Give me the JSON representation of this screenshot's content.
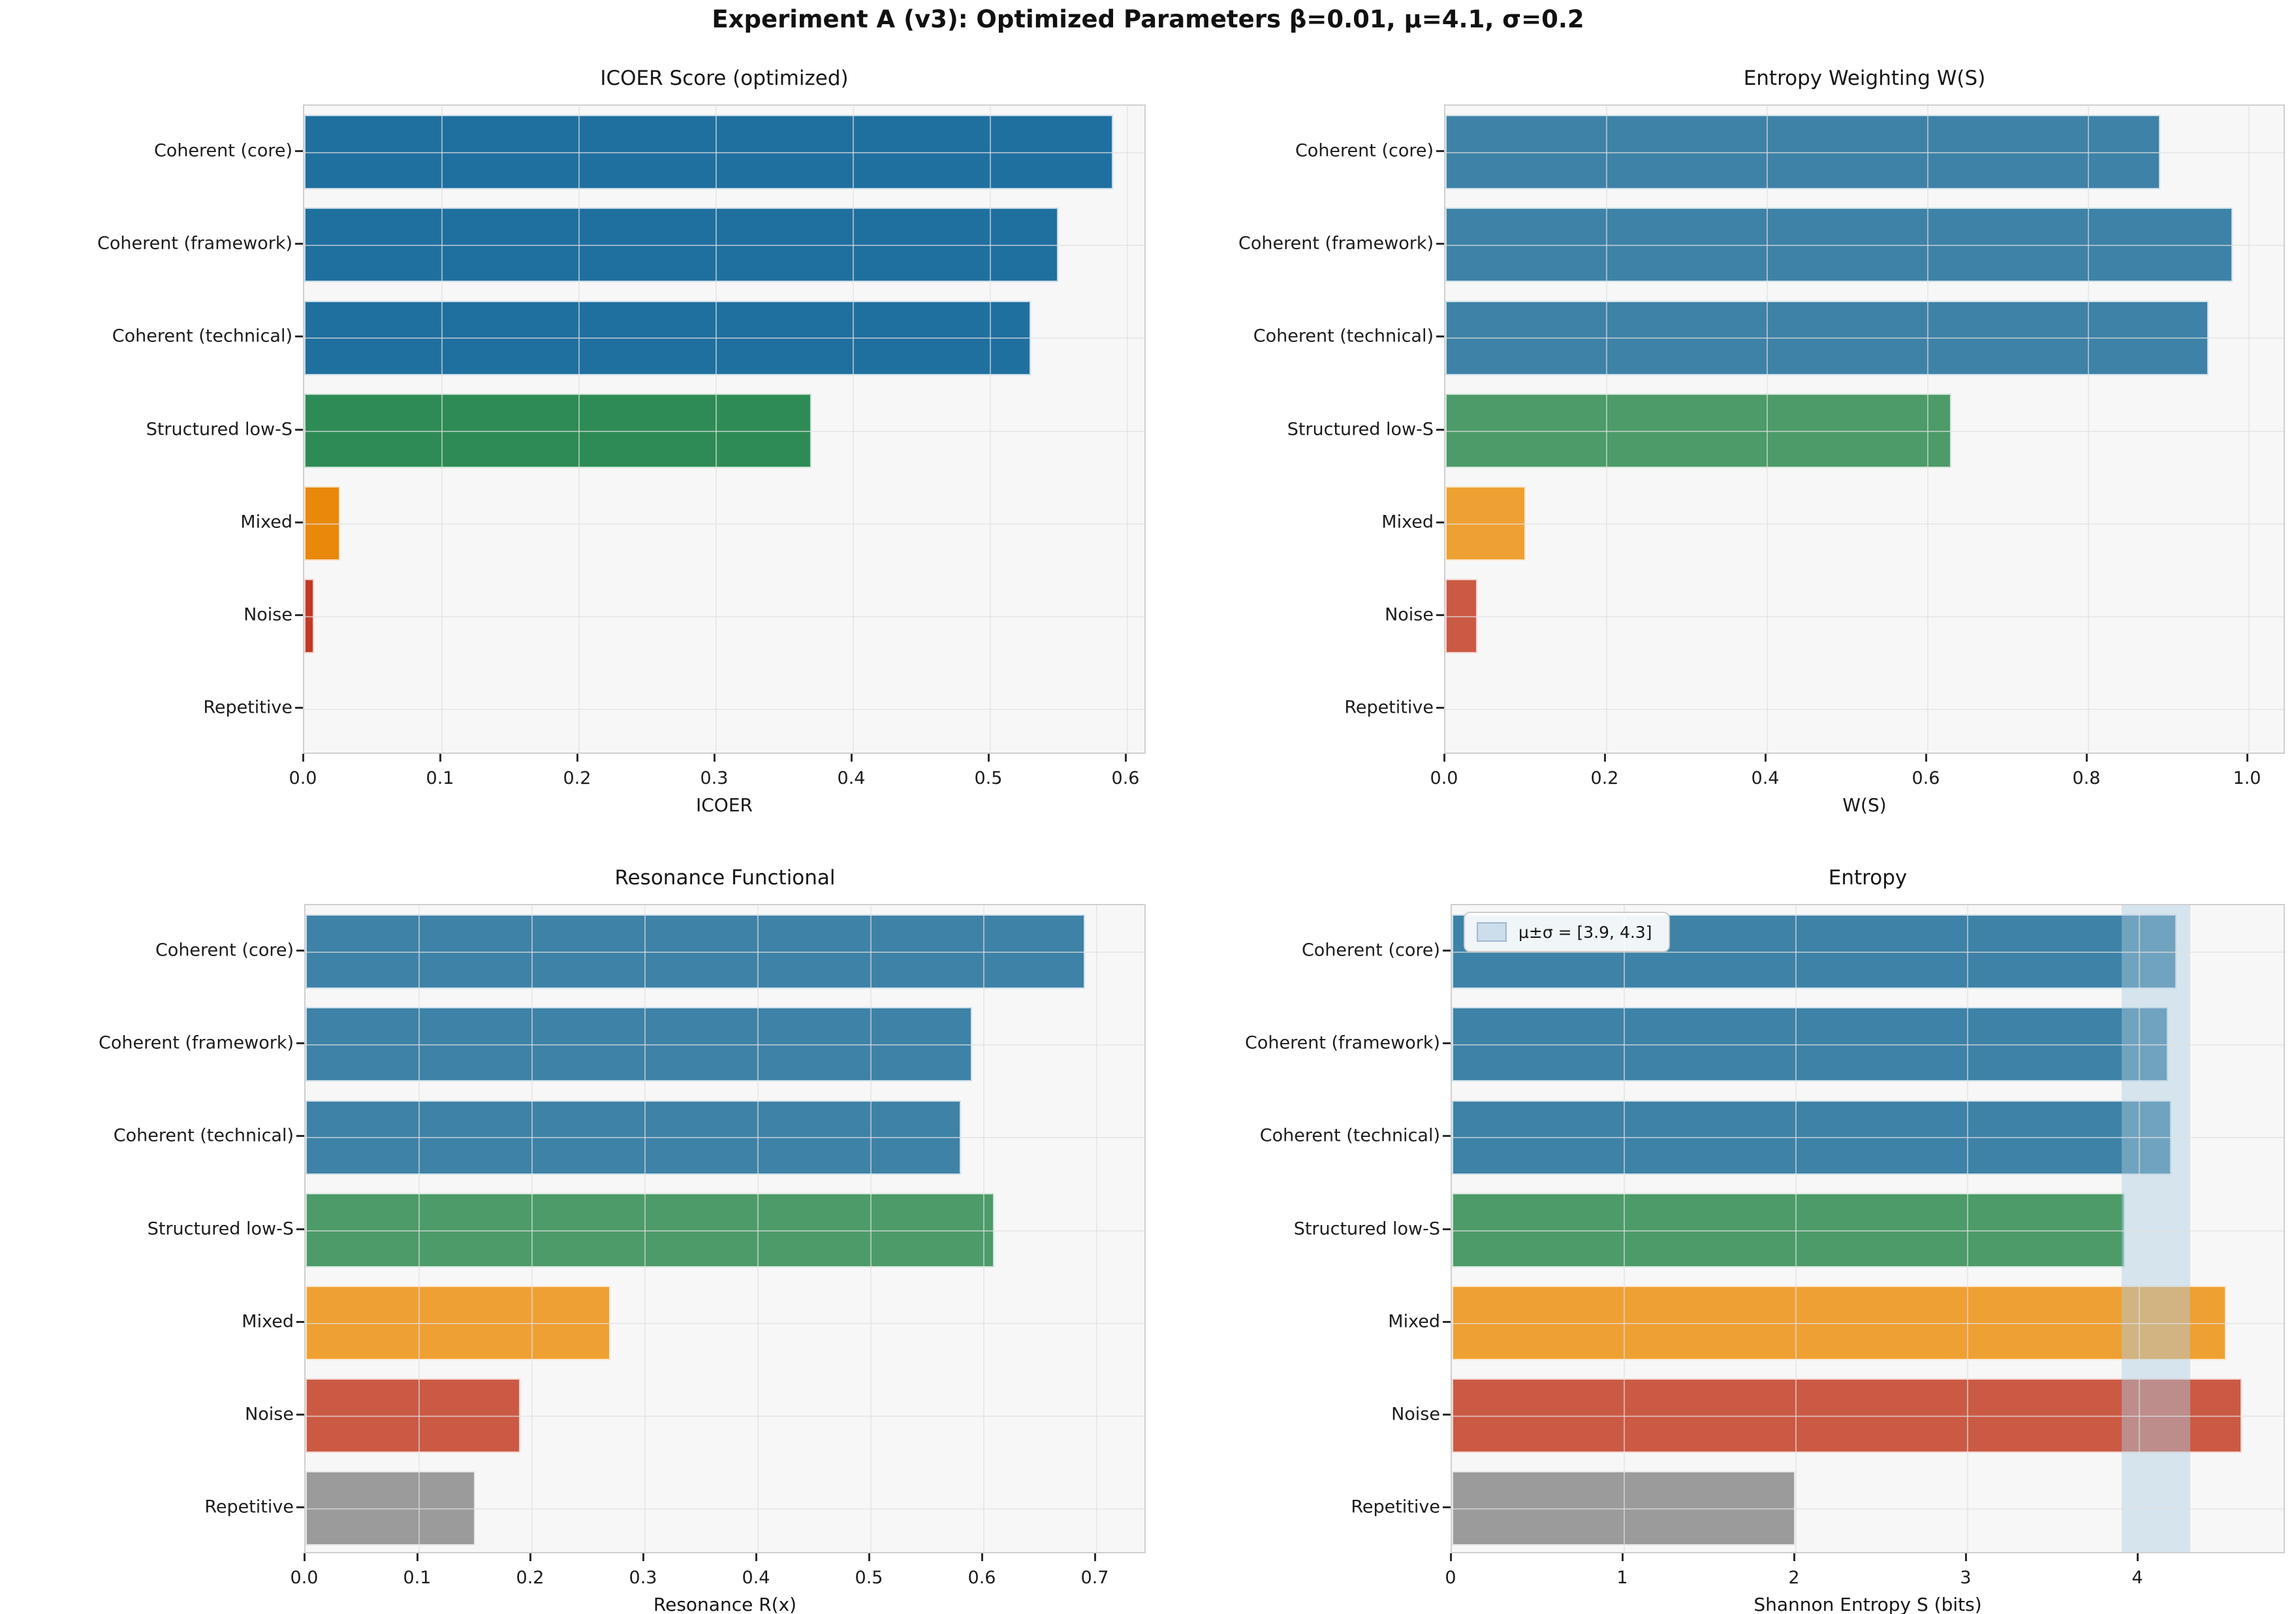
{
  "suptitle": "Experiment A (v3): Optimized Parameters β=0.01, μ=4.1, σ=0.2",
  "categories": [
    "Coherent (core)",
    "Coherent (framework)",
    "Coherent (technical)",
    "Structured low-S",
    "Mixed",
    "Noise",
    "Repetitive"
  ],
  "chart_data": [
    {
      "type": "bar",
      "orientation": "horizontal",
      "title": "ICOER Score (optimized)",
      "xlabel": "ICOER",
      "categories": [
        "Coherent (core)",
        "Coherent (framework)",
        "Coherent (technical)",
        "Structured low-S",
        "Mixed",
        "Noise",
        "Repetitive"
      ],
      "values": [
        0.59,
        0.55,
        0.53,
        0.37,
        0.026,
        0.007,
        0.001
      ],
      "bar_colors": [
        "#20709F",
        "#20709F",
        "#20709F",
        "#2E8B55",
        "#E8890C",
        "#C03A26",
        "#9A9A9A"
      ],
      "xlim": [
        0,
        0.615
      ],
      "xticks": [
        0,
        0.1,
        0.2,
        0.3,
        0.4,
        0.5,
        0.6
      ],
      "xtick_labels": [
        "0.0",
        "0.1",
        "0.2",
        "0.3",
        "0.4",
        "0.5",
        "0.6"
      ],
      "grid": true,
      "legend_position": "none"
    },
    {
      "type": "bar",
      "orientation": "horizontal",
      "title": "Entropy Weighting W(S)",
      "xlabel": "W(S)",
      "categories": [
        "Coherent (core)",
        "Coherent (framework)",
        "Coherent (technical)",
        "Structured low-S",
        "Mixed",
        "Noise",
        "Repetitive"
      ],
      "values": [
        0.89,
        0.98,
        0.95,
        0.63,
        0.1,
        0.04,
        0.001
      ],
      "bar_colors": [
        "#3E82A7",
        "#3E82A7",
        "#3E82A7",
        "#4C9B68",
        "#EFA033",
        "#CB5A45",
        "#A4A4A4"
      ],
      "xlim": [
        0,
        1.047
      ],
      "xticks": [
        0,
        0.2,
        0.4,
        0.6,
        0.8,
        1.0
      ],
      "xtick_labels": [
        "0.0",
        "0.2",
        "0.4",
        "0.6",
        "0.8",
        "1.0"
      ],
      "grid": true,
      "legend_position": "none"
    },
    {
      "type": "bar",
      "orientation": "horizontal",
      "title": "Resonance Functional",
      "xlabel": "Resonance R(x)",
      "categories": [
        "Coherent (core)",
        "Coherent (framework)",
        "Coherent (technical)",
        "Structured low-S",
        "Mixed",
        "Noise",
        "Repetitive"
      ],
      "values": [
        0.69,
        0.59,
        0.58,
        0.61,
        0.27,
        0.19,
        0.15
      ],
      "bar_colors": [
        "#3E82A7",
        "#3E82A7",
        "#3E82A7",
        "#4C9B68",
        "#EFA033",
        "#CB5A45",
        "#9B9B9B"
      ],
      "xlim": [
        0,
        0.745
      ],
      "xticks": [
        0,
        0.1,
        0.2,
        0.3,
        0.4,
        0.5,
        0.6,
        0.7
      ],
      "xtick_labels": [
        "0.0",
        "0.1",
        "0.2",
        "0.3",
        "0.4",
        "0.5",
        "0.6",
        "0.7"
      ],
      "grid": true,
      "legend_position": "none"
    },
    {
      "type": "bar",
      "orientation": "horizontal",
      "title": "Entropy",
      "xlabel": "Shannon Entropy S (bits)",
      "categories": [
        "Coherent (core)",
        "Coherent (framework)",
        "Coherent (technical)",
        "Structured low-S",
        "Mixed",
        "Noise",
        "Repetitive"
      ],
      "values": [
        4.22,
        4.17,
        4.19,
        3.92,
        4.51,
        4.6,
        2.0
      ],
      "bar_colors": [
        "#3E82A7",
        "#3E82A7",
        "#3E82A7",
        "#4C9B68",
        "#EFA033",
        "#CB5A45",
        "#9B9B9B"
      ],
      "xlim": [
        0,
        4.86
      ],
      "xticks": [
        0,
        1,
        2,
        3,
        4
      ],
      "xtick_labels": [
        "0",
        "1",
        "2",
        "3",
        "4"
      ],
      "grid": true,
      "band": {
        "from": 3.9,
        "to": 4.3,
        "color": "#AECBE1"
      },
      "legend": {
        "label": "μ±σ = [3.9, 4.3]"
      },
      "legend_position": "upper left"
    }
  ],
  "colors": {
    "dark_blue": "#20709F",
    "steel_blue": "#3E82A7",
    "green": "#4C9B68",
    "orange": "#EFA033",
    "red": "#CB5A45",
    "gray": "#9B9B9B",
    "band": "#AECBE1",
    "plot_bg": "#F7F7F7"
  }
}
